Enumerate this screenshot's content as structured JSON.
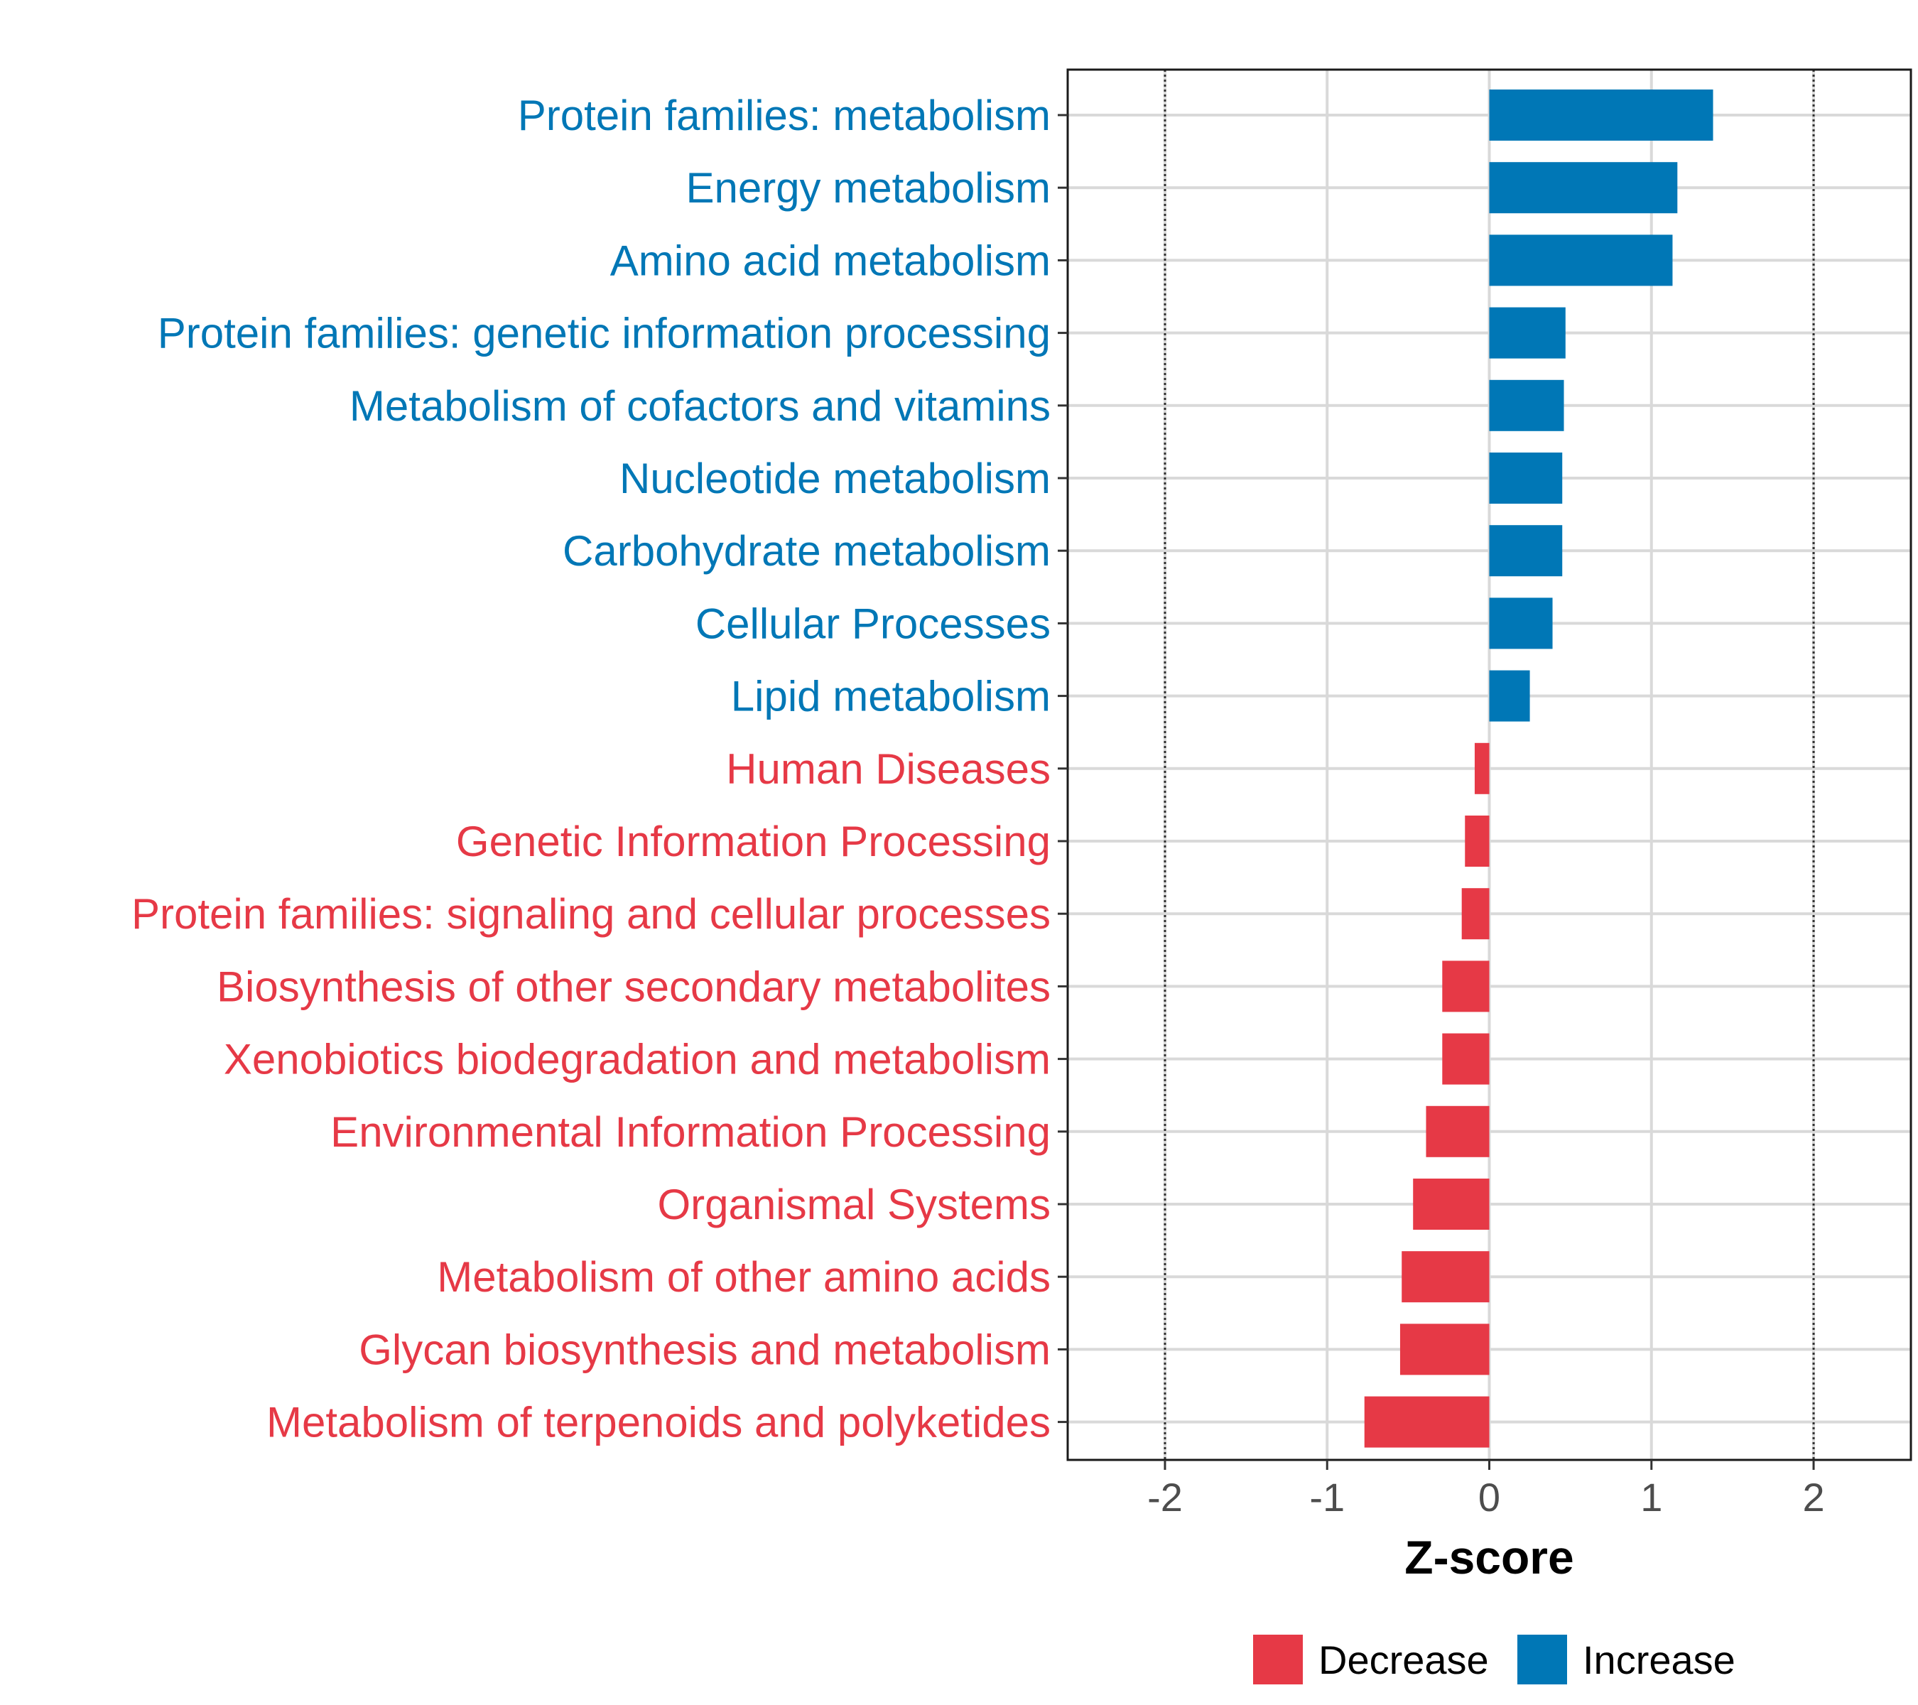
{
  "chart_data": {
    "type": "bar",
    "orientation": "horizontal",
    "xlabel": "Z-score",
    "xlim": [
      -2.6,
      2.6
    ],
    "xticks": [
      -2,
      -1,
      0,
      1,
      2
    ],
    "xtick_labels": [
      "-2",
      "-1",
      "0",
      "1",
      "2"
    ],
    "reference_lines": [
      -2,
      2
    ],
    "grid": true,
    "legend_placement": "bottom",
    "categories": [
      "Protein families: metabolism",
      "Energy metabolism",
      "Amino acid metabolism",
      "Protein families: genetic information processing",
      "Metabolism of cofactors and vitamins",
      "Nucleotide metabolism",
      "Carbohydrate metabolism",
      "Cellular Processes",
      "Lipid metabolism",
      "Human Diseases",
      "Genetic Information Processing",
      "Protein families: signaling and cellular processes",
      "Biosynthesis of other secondary metabolites",
      "Xenobiotics biodegradation and metabolism",
      "Environmental Information Processing",
      "Organismal Systems",
      "Metabolism of other amino acids",
      "Glycan biosynthesis and metabolism",
      "Metabolism of terpenoids and polyketides"
    ],
    "values": [
      1.38,
      1.16,
      1.13,
      0.47,
      0.46,
      0.45,
      0.45,
      0.39,
      0.25,
      -0.09,
      -0.15,
      -0.17,
      -0.29,
      -0.29,
      -0.39,
      -0.47,
      -0.54,
      -0.55,
      -0.77
    ],
    "groups": [
      "Increase",
      "Increase",
      "Increase",
      "Increase",
      "Increase",
      "Increase",
      "Increase",
      "Increase",
      "Increase",
      "Decrease",
      "Decrease",
      "Decrease",
      "Decrease",
      "Decrease",
      "Decrease",
      "Decrease",
      "Decrease",
      "Decrease",
      "Decrease"
    ],
    "legend": [
      {
        "name": "Decrease",
        "color": "#E63946"
      },
      {
        "name": "Increase",
        "color": "#0077B6"
      }
    ]
  }
}
